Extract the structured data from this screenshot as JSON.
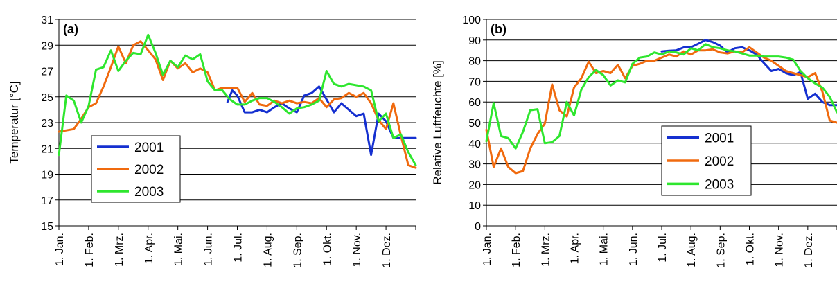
{
  "chart_data": [
    {
      "type": "line",
      "panel_label": "(a)",
      "ylabel": "Temperatur [°C]",
      "ylim": [
        15,
        31
      ],
      "yticks": [
        15,
        17,
        19,
        21,
        23,
        25,
        27,
        29,
        31
      ],
      "xlim": [
        0,
        12
      ],
      "xtick_labels": [
        "1. Jan.",
        "1. Feb.",
        "1. Mrz.",
        "1. Apr.",
        "1. Mai.",
        "1. Jun.",
        "1. Jul.",
        "1. Aug.",
        "1. Sep.",
        "1. Okt.",
        "1. Nov.",
        "1. Dez."
      ],
      "grid": "horizontal",
      "legend": "lower-left",
      "series": [
        {
          "name": "2001",
          "color": "#1530d0",
          "x": [
            5.67,
            5.83,
            6.0,
            6.25,
            6.5,
            6.75,
            7.0,
            7.25,
            7.5,
            7.75,
            8.0,
            8.25,
            8.5,
            8.75,
            9.0,
            9.25,
            9.5,
            9.75,
            10.0,
            10.25,
            10.5,
            10.75,
            11.0,
            11.25,
            11.5,
            11.75,
            12.0
          ],
          "y": [
            24.6,
            25.5,
            25.1,
            23.8,
            23.8,
            24.0,
            23.8,
            24.2,
            24.5,
            24.1,
            23.8,
            25.1,
            25.3,
            25.8,
            24.8,
            23.8,
            24.5,
            24.0,
            23.5,
            23.7,
            20.5,
            23.7,
            23.1,
            21.8,
            21.8,
            21.8,
            21.8
          ]
        },
        {
          "name": "2002",
          "color": "#f06a0e",
          "x": [
            0.0,
            0.25,
            0.5,
            0.75,
            1.0,
            1.25,
            1.5,
            1.75,
            2.0,
            2.25,
            2.5,
            2.75,
            3.0,
            3.25,
            3.5,
            3.75,
            4.0,
            4.25,
            4.5,
            4.75,
            5.0,
            5.25,
            5.5,
            5.75,
            6.0,
            6.25,
            6.5,
            6.75,
            7.0,
            7.25,
            7.5,
            7.75,
            8.0,
            8.25,
            8.5,
            8.75,
            9.0,
            9.25,
            9.5,
            9.75,
            10.0,
            10.25,
            10.5,
            10.75,
            11.0,
            11.25,
            11.5,
            11.75,
            12.0
          ],
          "y": [
            22.3,
            22.4,
            22.5,
            23.3,
            24.2,
            24.5,
            25.8,
            27.3,
            28.9,
            27.6,
            29.0,
            29.3,
            28.6,
            27.9,
            26.3,
            27.8,
            27.2,
            27.6,
            26.9,
            27.2,
            26.9,
            25.5,
            25.7,
            25.7,
            25.7,
            24.6,
            25.3,
            24.4,
            24.3,
            24.7,
            24.5,
            24.7,
            24.5,
            24.6,
            24.5,
            24.9,
            24.2,
            24.8,
            24.9,
            25.3,
            25.0,
            25.3,
            24.5,
            23.2,
            22.5,
            24.5,
            22.0,
            19.7,
            19.5
          ]
        },
        {
          "name": "2003",
          "color": "#2ee62e",
          "x": [
            0.0,
            0.25,
            0.5,
            0.75,
            1.0,
            1.25,
            1.5,
            1.75,
            2.0,
            2.25,
            2.5,
            2.75,
            3.0,
            3.25,
            3.5,
            3.75,
            4.0,
            4.25,
            4.5,
            4.75,
            5.0,
            5.25,
            5.5,
            5.75,
            6.0,
            6.25,
            6.5,
            6.75,
            7.0,
            7.25,
            7.5,
            7.75,
            8.0,
            8.25,
            8.5,
            8.75,
            9.0,
            9.25,
            9.5,
            9.75,
            10.0,
            10.25,
            10.5,
            10.75,
            11.0,
            11.25,
            11.5,
            11.75,
            12.0
          ],
          "y": [
            20.5,
            25.1,
            24.7,
            23.0,
            24.3,
            27.1,
            27.3,
            28.6,
            27.0,
            27.8,
            28.4,
            28.3,
            29.8,
            28.4,
            26.7,
            27.8,
            27.3,
            28.2,
            27.9,
            28.3,
            26.2,
            25.5,
            25.5,
            24.8,
            24.4,
            24.4,
            24.7,
            24.9,
            24.9,
            24.6,
            24.2,
            23.7,
            24.1,
            24.2,
            24.4,
            24.7,
            27.0,
            26.0,
            25.8,
            26.0,
            25.9,
            25.8,
            25.5,
            23.1,
            23.7,
            21.8,
            22.1,
            20.7,
            19.7
          ]
        }
      ]
    },
    {
      "type": "line",
      "panel_label": "(b)",
      "ylabel": "Relative Luftfeuchte [%]",
      "ylim": [
        0,
        100
      ],
      "yticks": [
        0,
        10,
        20,
        30,
        40,
        50,
        60,
        70,
        80,
        90,
        100
      ],
      "xlim": [
        0,
        12
      ],
      "xtick_labels": [
        "1. Jan.",
        "1. Feb.",
        "1. Mrz.",
        "1. Apr.",
        "1. Mai.",
        "1. Jun.",
        "1. Jul.",
        "1. Aug.",
        "1. Sep.",
        "1. Okt.",
        "1. Nov.",
        "1. Dez."
      ],
      "grid": "horizontal",
      "legend": "center-right",
      "series": [
        {
          "name": "2001",
          "color": "#1530d0",
          "x": [
            6.0,
            6.25,
            6.5,
            6.75,
            7.0,
            7.25,
            7.5,
            7.75,
            8.0,
            8.25,
            8.5,
            8.75,
            9.0,
            9.25,
            9.5,
            9.75,
            10.0,
            10.25,
            10.5,
            10.75,
            11.0,
            11.25,
            11.5,
            11.75,
            12.0
          ],
          "y": [
            84.5,
            84.8,
            85.0,
            86.4,
            86.5,
            88.2,
            90.0,
            89.0,
            87.3,
            84.0,
            86.0,
            86.5,
            85.0,
            83.0,
            78.8,
            75.0,
            76.0,
            74.0,
            73.0,
            74.5,
            61.5,
            64.0,
            60.0,
            58.5,
            58.5
          ]
        },
        {
          "name": "2002",
          "color": "#f06a0e",
          "x": [
            0.0,
            0.25,
            0.5,
            0.75,
            1.0,
            1.25,
            1.5,
            1.75,
            2.0,
            2.25,
            2.5,
            2.75,
            3.0,
            3.25,
            3.5,
            3.75,
            4.0,
            4.25,
            4.5,
            4.75,
            5.0,
            5.25,
            5.5,
            5.75,
            6.0,
            6.25,
            6.5,
            6.75,
            7.0,
            7.25,
            7.5,
            7.75,
            8.0,
            8.25,
            8.5,
            8.75,
            9.0,
            9.25,
            9.5,
            9.75,
            10.0,
            10.25,
            10.5,
            10.75,
            11.0,
            11.25,
            11.5,
            11.75,
            12.0
          ],
          "y": [
            46.5,
            28.5,
            37.5,
            28.5,
            25.5,
            26.5,
            37.5,
            44.5,
            49.5,
            68.5,
            56.0,
            53.0,
            67.0,
            71.5,
            79.5,
            74.0,
            75.0,
            74.0,
            78.0,
            71.5,
            77.5,
            78.5,
            80.0,
            80.0,
            81.5,
            83.0,
            82.0,
            84.5,
            83.0,
            85.0,
            85.0,
            85.5,
            84.0,
            83.5,
            84.5,
            84.0,
            86.5,
            84.0,
            81.5,
            80.0,
            77.5,
            75.0,
            74.0,
            73.0,
            72.0,
            74.0,
            65.0,
            51.0,
            50.0
          ]
        },
        {
          "name": "2003",
          "color": "#2ee62e",
          "x": [
            0.0,
            0.25,
            0.5,
            0.75,
            1.0,
            1.25,
            1.5,
            1.75,
            2.0,
            2.25,
            2.5,
            2.75,
            3.0,
            3.25,
            3.5,
            3.75,
            4.0,
            4.25,
            4.5,
            4.75,
            5.0,
            5.25,
            5.5,
            5.75,
            6.0,
            6.25,
            6.5,
            6.75,
            7.0,
            7.25,
            7.5,
            7.75,
            8.0,
            8.25,
            8.5,
            8.75,
            9.0,
            9.25,
            9.5,
            9.75,
            10.0,
            10.25,
            10.5,
            10.75,
            11.0,
            11.25,
            11.5,
            11.75,
            12.0
          ],
          "y": [
            41.0,
            59.5,
            43.5,
            42.5,
            37.5,
            45.5,
            56.0,
            56.5,
            40.0,
            40.5,
            43.5,
            60.0,
            53.5,
            66.0,
            72.0,
            75.5,
            73.0,
            68.0,
            70.5,
            69.5,
            78.5,
            81.5,
            82.0,
            84.0,
            83.0,
            84.5,
            84.0,
            83.0,
            86.0,
            85.0,
            88.0,
            86.5,
            86.0,
            85.0,
            84.5,
            83.5,
            82.5,
            82.5,
            82.0,
            82.0,
            82.0,
            81.5,
            80.5,
            75.0,
            71.5,
            69.0,
            67.0,
            62.5,
            55.0
          ]
        }
      ]
    }
  ]
}
